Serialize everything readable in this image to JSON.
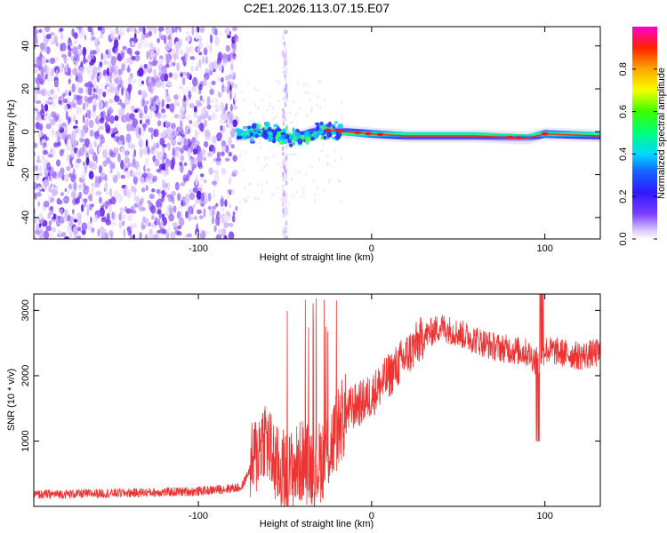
{
  "title": "C2E1.2026.113.07.15.E07",
  "chart_data": [
    {
      "type": "heatmap",
      "title": "C2E1.2026.113.07.15.E07",
      "xlabel": "Height of straight line (km)",
      "ylabel": "Frequency (Hz)",
      "xlim": [
        -195,
        132
      ],
      "ylim": [
        -50,
        49
      ],
      "xticks": [
        -100,
        0,
        100
      ],
      "xtick_labels": [
        "-100",
        "0",
        "100"
      ],
      "yticks": [
        -40,
        -20,
        0,
        20,
        40
      ],
      "ytick_labels": [
        "-40",
        "-20",
        "0",
        "20",
        "40"
      ],
      "colorbar": {
        "label": "Normalized spectral amplitude",
        "range": [
          0,
          1
        ],
        "ticks": [
          0.0,
          0.2,
          0.4,
          0.6,
          0.8
        ],
        "tick_labels": [
          "0.0",
          "0.2",
          "0.4",
          "0.6",
          "0.8"
        ]
      },
      "features": {
        "noise_region_x": [
          -195,
          -78
        ],
        "signal_track": {
          "x": [
            -78,
            -60,
            -45,
            -30,
            -15,
            0,
            20,
            60,
            90,
            100,
            132
          ],
          "freq_hz": [
            -2,
            0,
            -3,
            1,
            0,
            -1,
            -2,
            -2,
            -3,
            -1,
            -2
          ]
        }
      }
    },
    {
      "type": "line",
      "xlabel": "Height of straight line (km)",
      "ylabel": "SNR (10 * v/v)",
      "xlim": [
        -195,
        132
      ],
      "ylim": [
        0,
        3250
      ],
      "xticks": [
        -100,
        0,
        100
      ],
      "xtick_labels": [
        "-100",
        "0",
        "100"
      ],
      "yticks": [
        1000,
        2000,
        3000
      ],
      "ytick_labels": [
        "1000",
        "2000",
        "3000"
      ],
      "series": [
        {
          "name": "SNR",
          "color": "#ee3333",
          "x": [
            -195,
            -150,
            -100,
            -75,
            -68,
            -62,
            -55,
            -48,
            -40,
            -32,
            -24,
            -18,
            -12,
            -5,
            0,
            10,
            20,
            30,
            40,
            50,
            60,
            70,
            80,
            90,
            96,
            100,
            110,
            120,
            132
          ],
          "y": [
            180,
            200,
            230,
            290,
            700,
            1100,
            600,
            500,
            700,
            600,
            900,
            1300,
            1500,
            1600,
            1700,
            2000,
            2300,
            2600,
            2750,
            2650,
            2550,
            2450,
            2400,
            2350,
            2200,
            2400,
            2350,
            2300,
            2350
          ]
        }
      ]
    }
  ]
}
